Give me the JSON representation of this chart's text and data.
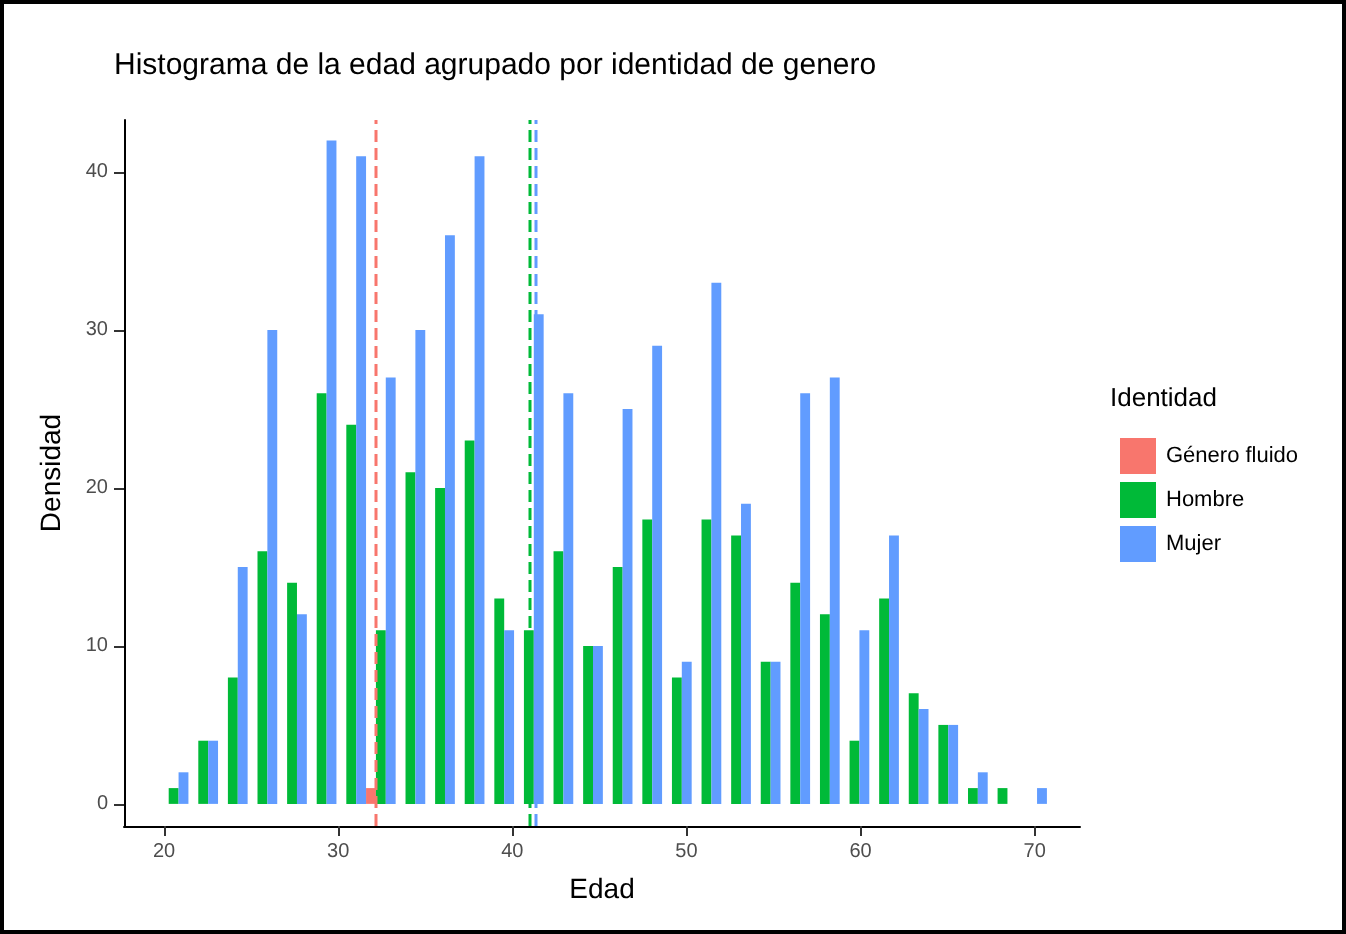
{
  "chart_data": {
    "type": "histogram",
    "title": "Histograma de la edad agrupado por identidad de genero",
    "xlabel": "Edad",
    "ylabel": "Densidad",
    "legend_title": "Identidad",
    "legend": "right",
    "grid": false,
    "bins": [
      19.7,
      21.4,
      23.1,
      24.8,
      26.5,
      28.2,
      29.9,
      31.6,
      33.3,
      35.0,
      36.7,
      38.4,
      40.1,
      41.8,
      43.5,
      45.2,
      46.9,
      48.6,
      50.3,
      52.0,
      53.7,
      55.4,
      57.1,
      58.8,
      60.5,
      62.2,
      63.9,
      65.6,
      67.3,
      69.0,
      70.7
    ],
    "series": [
      {
        "name": "Género fluido",
        "color": "#f8766d",
        "values": [
          0,
          0,
          0,
          0,
          0,
          0,
          0,
          1,
          0,
          0,
          0,
          0,
          0,
          0,
          0,
          0,
          0,
          0,
          0,
          0,
          0,
          0,
          0,
          0,
          0,
          0,
          0,
          0,
          0,
          0
        ]
      },
      {
        "name": "Hombre",
        "color": "#00ba38",
        "values": [
          1,
          4,
          8,
          16,
          14,
          26,
          24,
          11,
          21,
          20,
          23,
          13,
          11,
          16,
          10,
          15,
          18,
          8,
          18,
          17,
          9,
          14,
          12,
          4,
          13,
          7,
          5,
          1,
          1,
          0
        ]
      },
      {
        "name": "Mujer",
        "color": "#619cff",
        "values": [
          2,
          4,
          15,
          30,
          12,
          42,
          41,
          27,
          30,
          36,
          41,
          11,
          31,
          26,
          10,
          25,
          29,
          9,
          33,
          19,
          9,
          26,
          27,
          11,
          17,
          6,
          5,
          2,
          0,
          1
        ]
      }
    ],
    "ref_lines": [
      {
        "axis": "x",
        "value": 32.1,
        "color": "#f8766d",
        "line_style": "dashed"
      },
      {
        "axis": "x",
        "value": 41.0,
        "color": "#00ba38",
        "line_style": "dashed"
      },
      {
        "axis": "x",
        "value": 41.3,
        "color": "#619cff",
        "line_style": "dashed"
      }
    ],
    "xlim": [
      17.7,
      72.6
    ],
    "xticks": [
      20,
      30,
      40,
      50,
      60,
      70
    ],
    "ylim": [
      -1.4,
      43.3
    ],
    "yticks": [
      0,
      10,
      20,
      30,
      40
    ]
  }
}
